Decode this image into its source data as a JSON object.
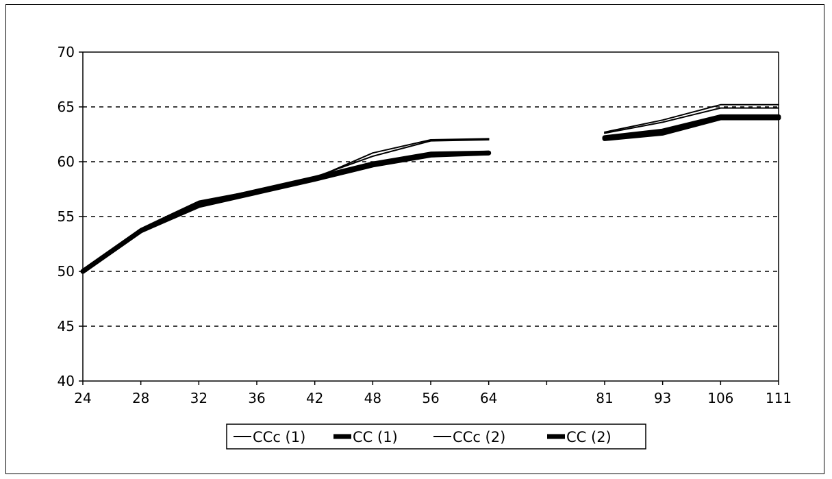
{
  "chart_data": {
    "type": "line",
    "title": "",
    "xlabel": "",
    "ylabel": "",
    "categories": [
      "24",
      "28",
      "32",
      "36",
      "42",
      "48",
      "56",
      "64",
      "",
      "81",
      "93",
      "106",
      "111"
    ],
    "yticks": [
      "40",
      "45",
      "50",
      "55",
      "60",
      "65",
      "70"
    ],
    "ylim": [
      40,
      70
    ],
    "grid": "horizontal-dashed",
    "legend_position": "bottom",
    "series": [
      {
        "name": "CCc (1)",
        "style": "thin",
        "color": "#000000",
        "values": [
          50.0,
          53.8,
          56.3,
          57.3,
          58.5,
          60.8,
          62.0,
          62.1,
          null,
          62.7,
          63.8,
          65.2,
          65.2
        ]
      },
      {
        "name": "CC (1)",
        "style": "thick",
        "color": "#000000",
        "values": [
          50.0,
          53.7,
          56.0,
          57.2,
          58.4,
          59.7,
          60.6,
          60.8,
          null,
          62.1,
          62.6,
          64.0,
          64.0
        ]
      },
      {
        "name": "CCc (2)",
        "style": "thin",
        "color": "#000000",
        "values": [
          50.0,
          53.9,
          56.4,
          57.4,
          58.6,
          60.5,
          61.9,
          62.0,
          null,
          62.6,
          63.6,
          64.9,
          64.9
        ]
      },
      {
        "name": "CC (2)",
        "style": "thick",
        "color": "#000000",
        "values": [
          50.0,
          53.7,
          56.1,
          57.3,
          58.5,
          59.8,
          60.7,
          60.8,
          null,
          62.2,
          62.8,
          64.1,
          64.1
        ]
      }
    ]
  }
}
